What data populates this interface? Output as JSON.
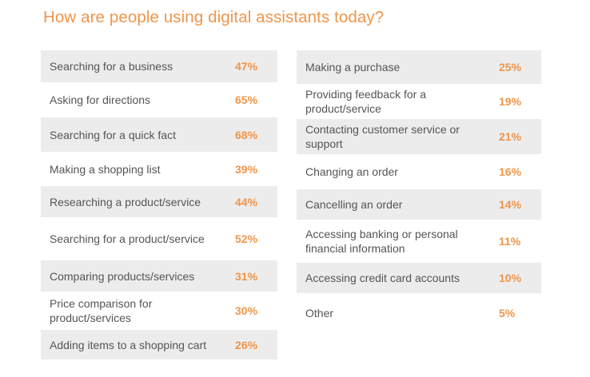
{
  "title": "How are people using digital assistants today?",
  "chart_data": {
    "type": "table",
    "columns": [
      [
        {
          "label": "Searching for a business",
          "value": "47%"
        },
        {
          "label": "Asking for directions",
          "value": "65%"
        },
        {
          "label": "Searching for a quick fact",
          "value": "68%"
        },
        {
          "label": "Making a shopping list",
          "value": "39%"
        },
        {
          "label": "Researching a product/service",
          "value": "44%"
        },
        {
          "label": "Searching for a product/service",
          "value": "52%"
        },
        {
          "label": "Comparing products/services",
          "value": "31%"
        },
        {
          "label": "Price comparison for product/services",
          "value": "30%"
        },
        {
          "label": "Adding items to a shopping cart",
          "value": "26%"
        }
      ],
      [
        {
          "label": "Making a purchase",
          "value": "25%"
        },
        {
          "label": "Providing feedback for a product/service",
          "value": "19%"
        },
        {
          "label": "Contacting customer service or support",
          "value": "21%"
        },
        {
          "label": "Changing an order",
          "value": "16%"
        },
        {
          "label": "Cancelling an order",
          "value": "14%"
        },
        {
          "label": "Accessing banking or personal financial information",
          "value": "11%"
        },
        {
          "label": "Accessing credit card accounts",
          "value": "10%"
        },
        {
          "label": "Other",
          "value": "5%"
        }
      ]
    ]
  }
}
